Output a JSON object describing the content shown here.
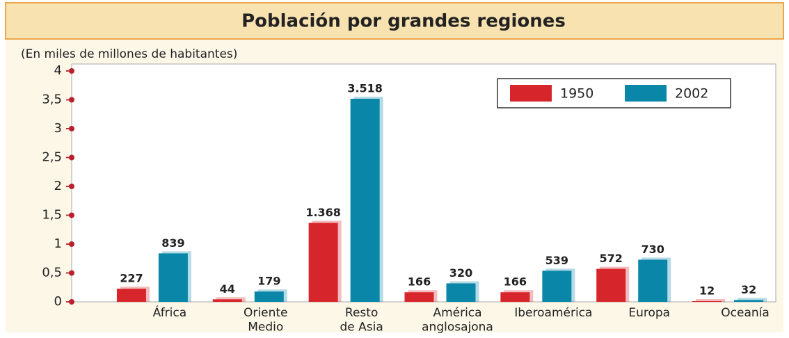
{
  "chart_data": {
    "type": "bar",
    "title": "Población por grandes regiones",
    "subtitle": "(En miles de millones de habitantes)",
    "categories": [
      "África",
      "Oriente\nMedio",
      "Resto\nde Asia",
      "América\nanglosajona",
      "Iberoamérica",
      "Europa",
      "Oceanía"
    ],
    "series": [
      {
        "name": "1950",
        "color": "#d7262b",
        "values": [
          0.227,
          0.044,
          1.368,
          0.166,
          0.166,
          0.572,
          0.012
        ],
        "value_labels": [
          "227",
          "44",
          "1.368",
          "166",
          "166",
          "572",
          "12"
        ]
      },
      {
        "name": "2002",
        "color": "#0a87a8",
        "values": [
          0.839,
          0.179,
          3.518,
          0.32,
          0.539,
          0.73,
          0.032
        ],
        "value_labels": [
          "839",
          "179",
          "3.518",
          "320",
          "539",
          "730",
          "32"
        ]
      }
    ],
    "ylim": [
      0,
      4
    ],
    "yticks": [
      0,
      {
        "value": 0.5,
        "label": "0,5"
      },
      1,
      {
        "value": 1.5,
        "label": "1,5"
      },
      2,
      {
        "value": 2.5,
        "label": "2,5"
      },
      3,
      {
        "value": 3.5,
        "label": "3,5"
      },
      4
    ],
    "legend": "upper right"
  }
}
